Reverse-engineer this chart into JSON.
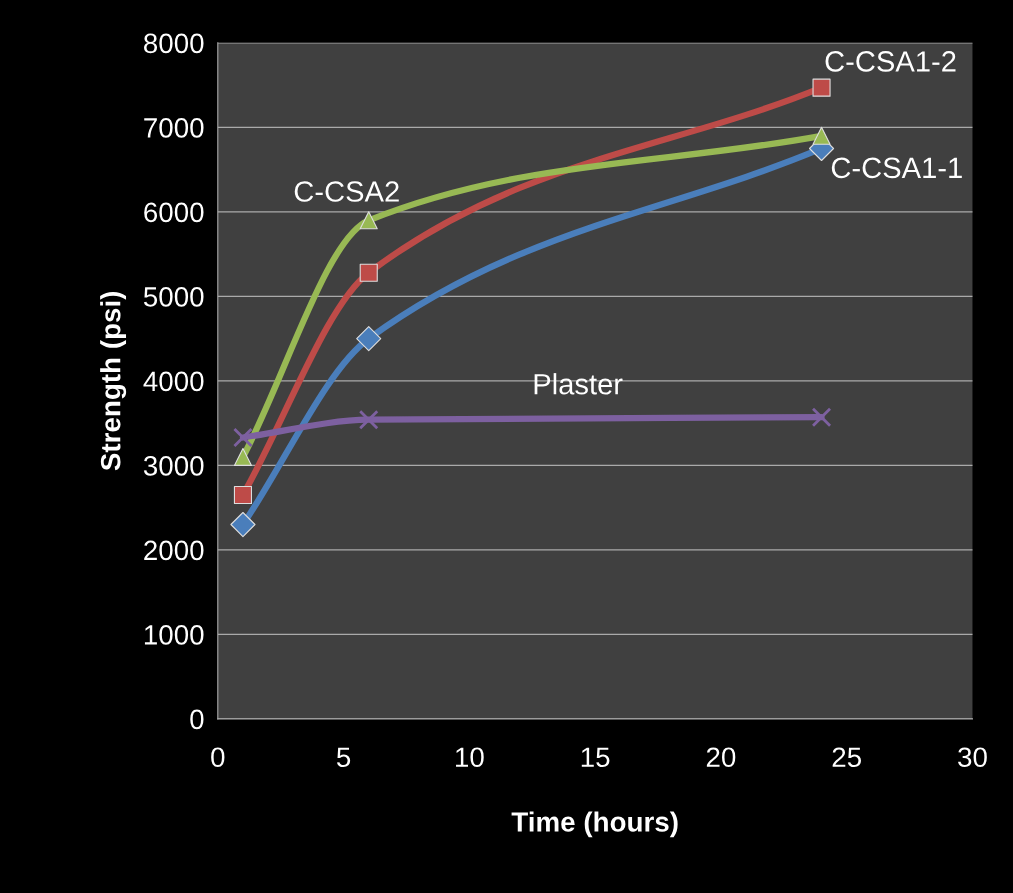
{
  "chart_data": {
    "type": "line",
    "xlabel": "Time (hours)",
    "ylabel": "Strength (psi)",
    "x": [
      1,
      6,
      24
    ],
    "series": [
      {
        "name": "C-CSA1-1",
        "color": "#4a7ebb",
        "marker": "diamond",
        "values": [
          2300,
          4500,
          6750
        ]
      },
      {
        "name": "C-CSA1-2",
        "color": "#be4b48",
        "marker": "square",
        "values": [
          2650,
          5280,
          7470
        ]
      },
      {
        "name": "C-CSA2",
        "color": "#98b954",
        "marker": "triangle",
        "values": [
          3100,
          5900,
          6900
        ]
      },
      {
        "name": "Plaster",
        "color": "#7d60a0",
        "marker": "cross",
        "values": [
          3330,
          3540,
          3570
        ]
      }
    ],
    "xlim": [
      0,
      30
    ],
    "xticks": [
      0,
      5,
      10,
      15,
      20,
      25,
      30
    ],
    "ylim": [
      0,
      8000
    ],
    "yticks": [
      0,
      1000,
      2000,
      3000,
      4000,
      5000,
      6000,
      7000,
      8000
    ],
    "grid": "y",
    "legend": false,
    "line_style": "solid"
  }
}
